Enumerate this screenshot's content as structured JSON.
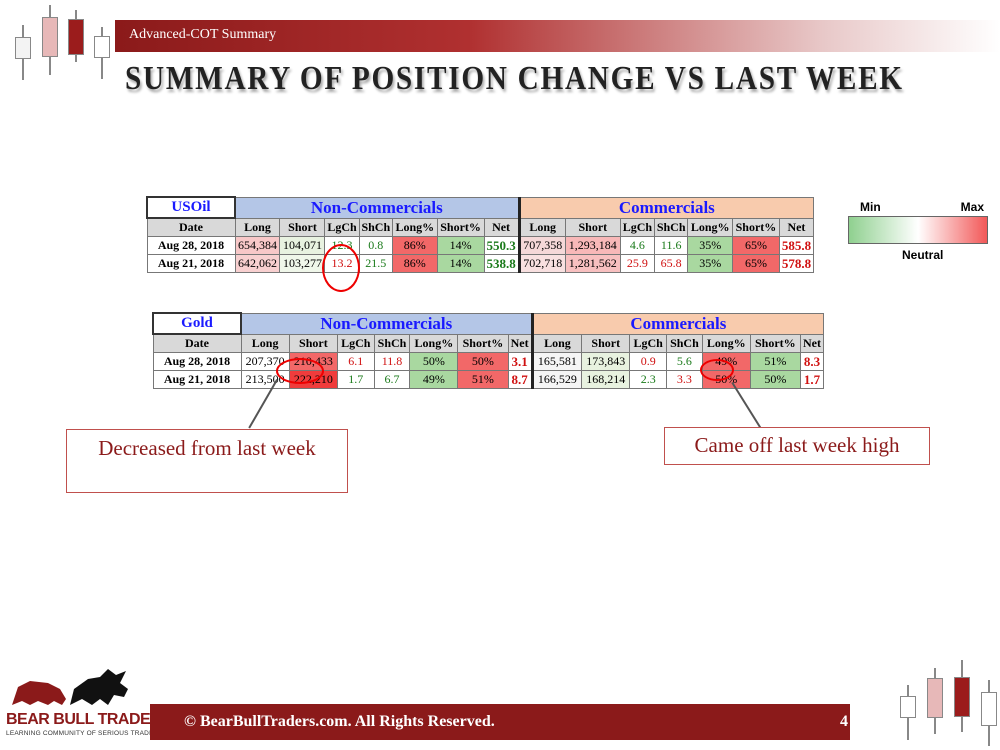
{
  "header": {
    "title": "Advanced-COT Summary"
  },
  "slide": {
    "title": "SUMMARY OF POSITION CHANGE VS LAST WEEK"
  },
  "columns": {
    "date": "Date",
    "group_noncomm": "Non-Commercials",
    "group_comm": "Commercials",
    "fields": [
      "Long",
      "Short",
      "LgCh",
      "ShCh",
      "Long%",
      "Short%",
      "Net"
    ]
  },
  "usoil": {
    "symbol": "USOil",
    "rows": [
      {
        "date": "Aug 28, 2018",
        "nc": [
          "654,384",
          "104,071",
          "12.3",
          "0.8",
          "86%",
          "14%",
          "550.3"
        ],
        "c": [
          "707,358",
          "1,293,184",
          "4.6",
          "11.6",
          "35%",
          "65%",
          "585.8"
        ]
      },
      {
        "date": "Aug 21, 2018",
        "nc": [
          "642,062",
          "103,277",
          "13.2",
          "21.5",
          "86%",
          "14%",
          "538.8"
        ],
        "c": [
          "702,718",
          "1,281,562",
          "25.9",
          "65.8",
          "35%",
          "65%",
          "578.8"
        ]
      }
    ]
  },
  "gold": {
    "symbol": "Gold",
    "rows": [
      {
        "date": "Aug 28, 2018",
        "nc": [
          "207,370",
          "210,433",
          "6.1",
          "11.8",
          "50%",
          "50%",
          "3.1"
        ],
        "c": [
          "165,581",
          "173,843",
          "0.9",
          "5.6",
          "49%",
          "51%",
          "8.3"
        ]
      },
      {
        "date": "Aug 21, 2018",
        "nc": [
          "213,500",
          "222,210",
          "1.7",
          "6.7",
          "49%",
          "51%",
          "8.7"
        ],
        "c": [
          "166,529",
          "168,214",
          "2.3",
          "3.3",
          "50%",
          "50%",
          "1.7"
        ]
      }
    ]
  },
  "legend": {
    "min": "Min",
    "max": "Max",
    "neutral": "Neutral"
  },
  "callouts": {
    "left": "Decreased from last week",
    "right": "Came off last week high"
  },
  "footer": {
    "copyright": "© BearBullTraders.com. All Rights Reserved.",
    "page": "4",
    "logo_name": "BEAR BULL TRADERS",
    "logo_tagline": "LEARNING COMMUNITY OF SERIOUS TRADERS"
  }
}
